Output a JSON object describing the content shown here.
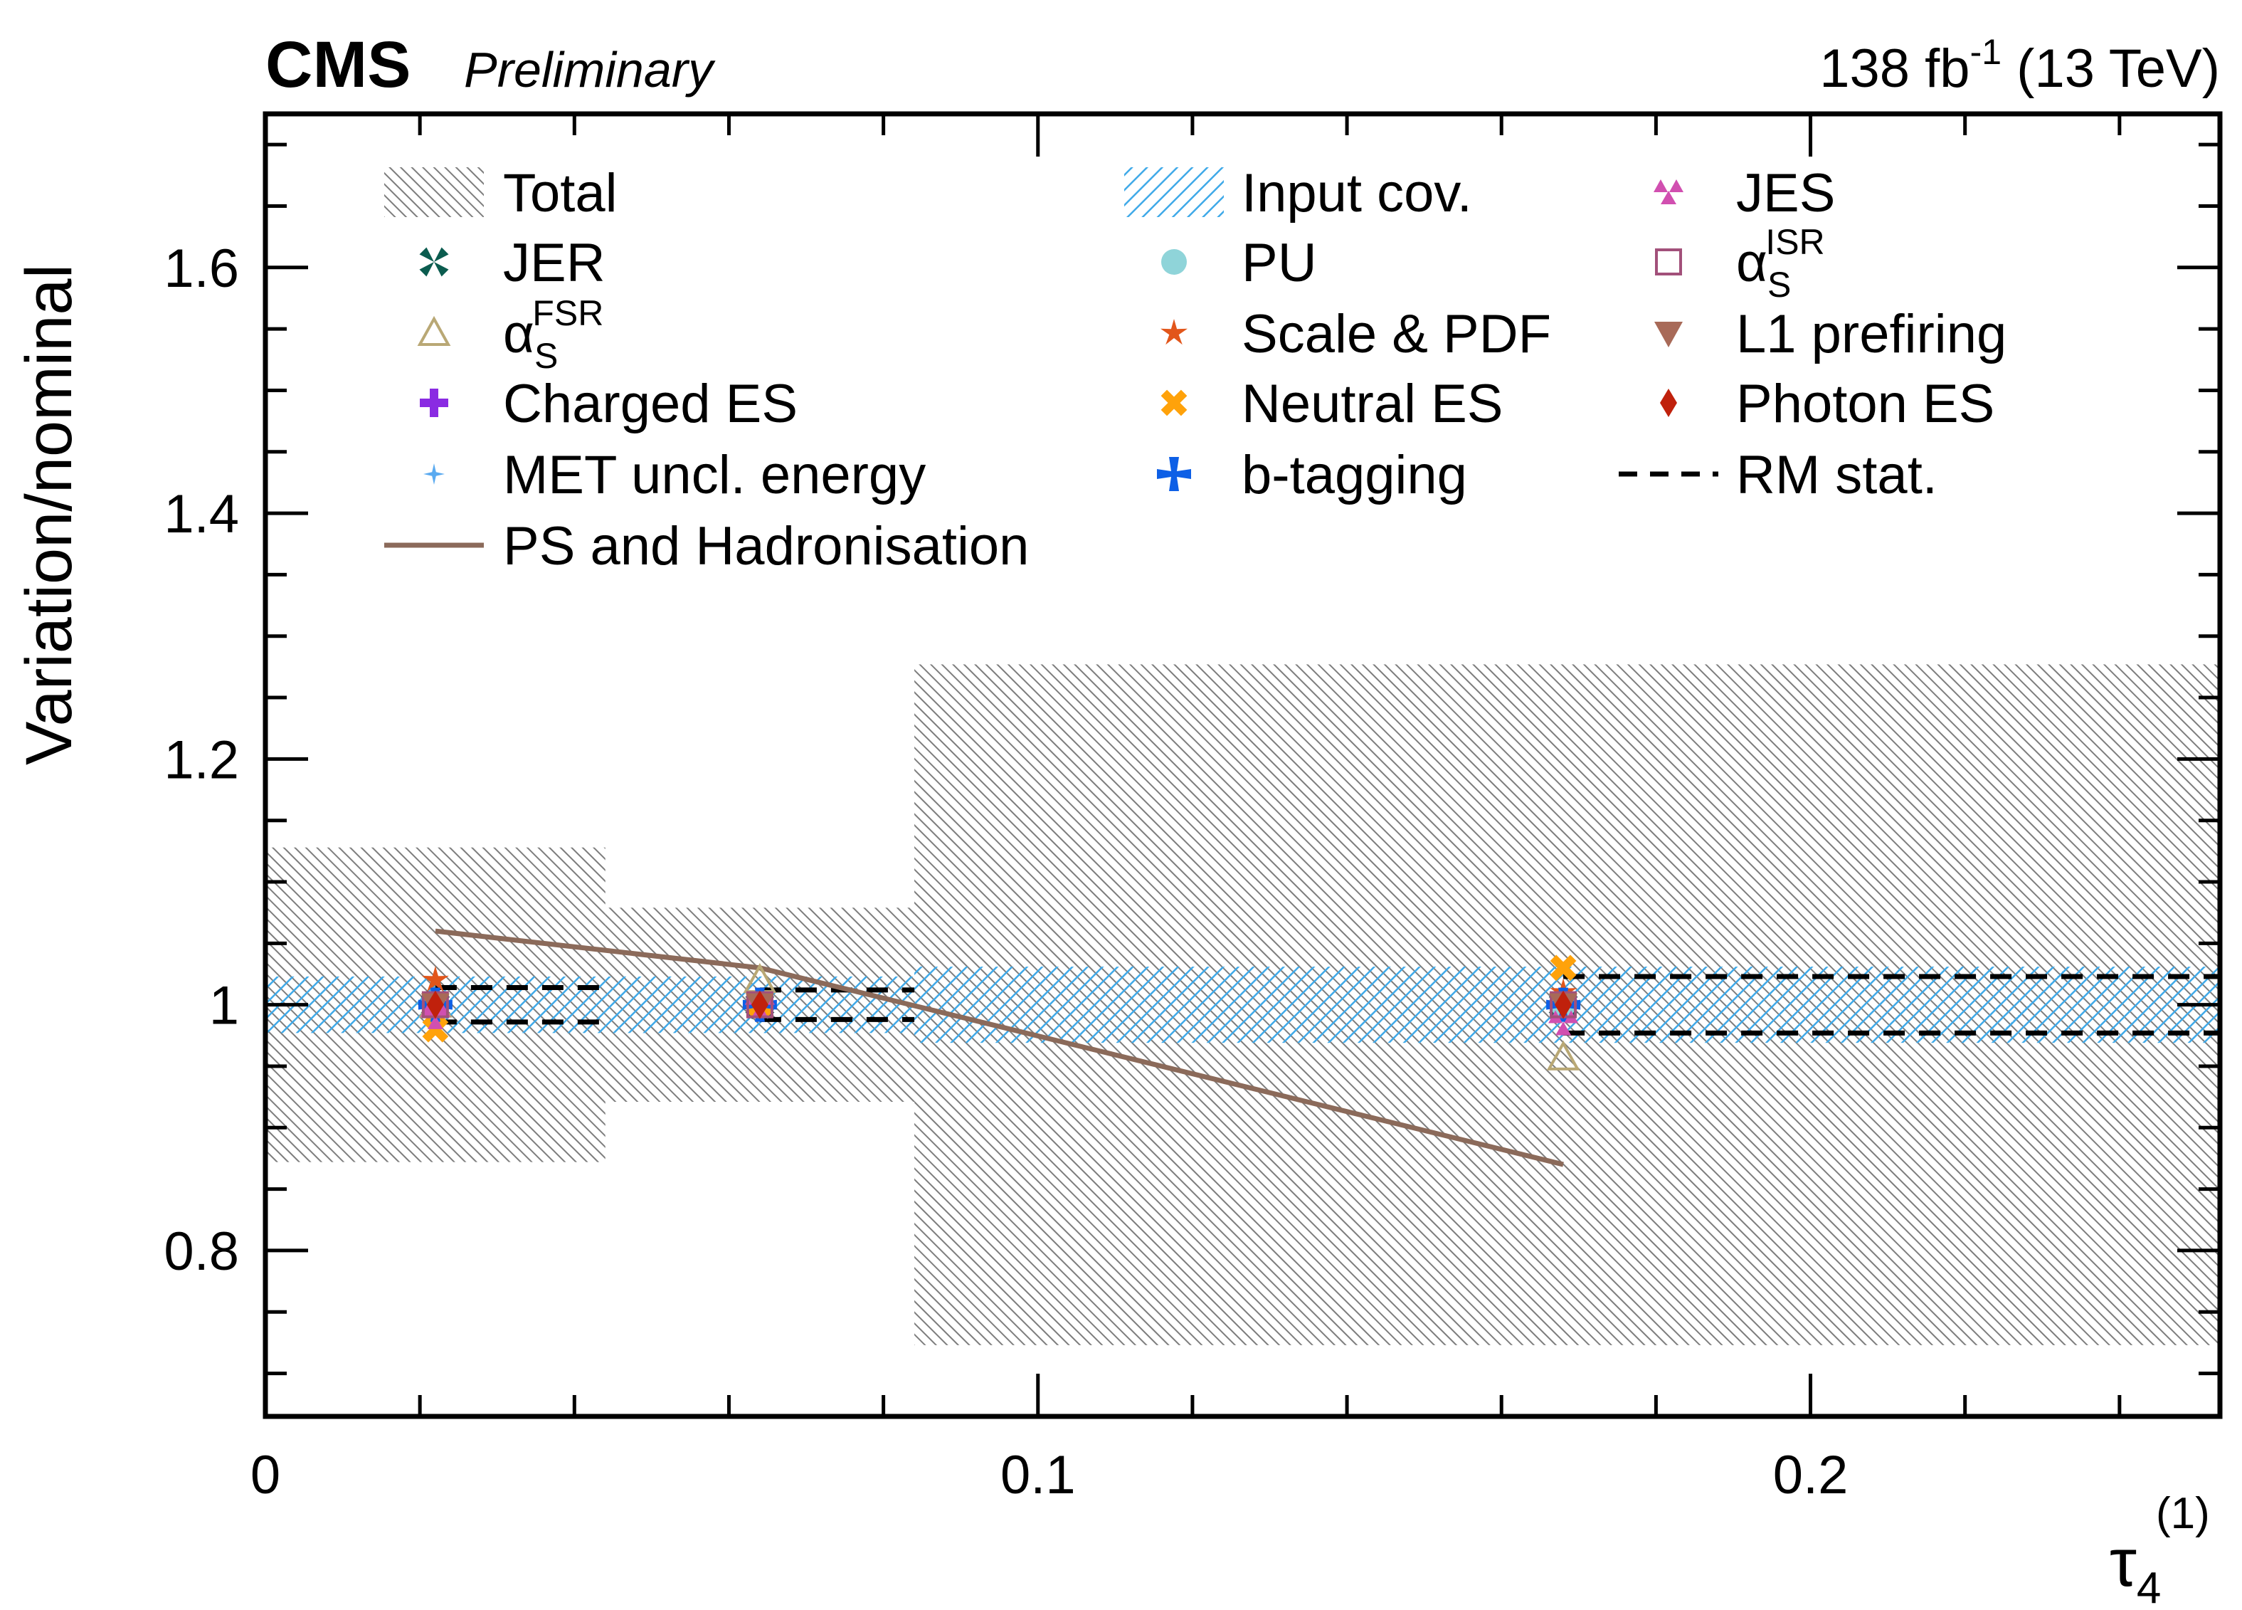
{
  "header": {
    "experiment": "CMS",
    "status": "Preliminary",
    "lumi_value": "138 fb",
    "lumi_sup": "-1",
    "energy": " (13 TeV)"
  },
  "chart_data": {
    "type": "scatter",
    "title": "",
    "xlabel": "τ",
    "xlabel_sub": "4",
    "xlabel_sup": "(1)",
    "ylabel": "Variation/nominal",
    "xlim": [
      0,
      0.253
    ],
    "ylim": [
      0.665,
      1.725
    ],
    "x_ticks": [
      0,
      0.1,
      0.2
    ],
    "x_tick_labels": [
      "0",
      "0.1",
      "0.2"
    ],
    "y_ticks": [
      0.8,
      1.0,
      1.2,
      1.4,
      1.6
    ],
    "y_tick_labels": [
      "0.8",
      "1",
      "1.2",
      "1.4",
      "1.6"
    ],
    "bins": [
      [
        0,
        0.044
      ],
      [
        0.044,
        0.084
      ],
      [
        0.084,
        0.253
      ]
    ],
    "bin_centers": [
      0.022,
      0.064,
      0.168
    ],
    "total_band": [
      [
        0.872,
        1.128
      ],
      [
        0.921,
        1.079
      ],
      [
        0.723,
        1.277
      ]
    ],
    "input_cov_band": [
      [
        0.977,
        1.023
      ],
      [
        0.977,
        1.023
      ],
      [
        0.969,
        1.031
      ]
    ],
    "rm_stat": [
      [
        0.986,
        1.014
      ],
      [
        0.988,
        1.012
      ],
      [
        0.977,
        1.023
      ]
    ],
    "ps_hadronisation": [
      1.06,
      1.03,
      0.87
    ],
    "legend": {
      "placement": "top",
      "entries": [
        {
          "label": "Total",
          "style": "total-band",
          "color": "#8c8c8c"
        },
        {
          "label": "JER",
          "style": "x-star",
          "color": "#0b5c4f"
        },
        {
          "label": "α",
          "sub": "S",
          "sup": "FSR",
          "style": "triangle-open",
          "color": "#b9a875"
        },
        {
          "label": "Charged ES",
          "style": "cross",
          "color": "#8a2be2"
        },
        {
          "label": "MET uncl. energy",
          "style": "small-star",
          "color": "#5aaaf0"
        },
        {
          "label": "PS and Hadronisation",
          "style": "line",
          "color": "#8b6a5a"
        },
        {
          "label": "Input cov.",
          "style": "input-band",
          "color": "#3fa9e8"
        },
        {
          "label": "PU",
          "style": "circle",
          "color": "#8fd4d9"
        },
        {
          "label": "Scale & PDF",
          "style": "star",
          "color": "#e2561b"
        },
        {
          "label": "Neutral ES",
          "style": "x",
          "color": "#ffa20a"
        },
        {
          "label": "b-tagging",
          "style": "big-cross",
          "color": "#0d5fe6"
        },
        {
          "label": "JES",
          "style": "double-triangle",
          "color": "#d14fb0"
        },
        {
          "label": "α",
          "sub": "S",
          "sup": "ISR",
          "style": "square-open",
          "color": "#a2507a"
        },
        {
          "label": "L1 prefiring",
          "style": "triangle-down",
          "color": "#a86a58"
        },
        {
          "label": "Photon ES",
          "style": "diamond",
          "color": "#c0210c"
        },
        {
          "label": "RM stat.",
          "style": "dashed",
          "color": "#000000"
        }
      ]
    },
    "series": [
      {
        "name": "JER",
        "color": "#0b5c4f",
        "values": [
          1.0,
          1.0,
          1.0
        ]
      },
      {
        "name": "αSFSR",
        "color": "#b9a875",
        "values": [
          1.0,
          1.02,
          0.957
        ]
      },
      {
        "name": "Charged ES",
        "color": "#8a2be2",
        "values": [
          1.0,
          1.0,
          1.0
        ]
      },
      {
        "name": "MET uncl. energy",
        "color": "#5aaaf0",
        "values": [
          1.0,
          1.0,
          1.0
        ]
      },
      {
        "name": "PU",
        "color": "#8fd4d9",
        "values": [
          1.0,
          1.0,
          1.0
        ]
      },
      {
        "name": "Scale & PDF",
        "color": "#e2561b",
        "values": [
          1.02,
          1.0,
          1.01
        ]
      },
      {
        "name": "Neutral ES",
        "color": "#ffa20a",
        "values": [
          0.98,
          1.0,
          1.03
        ]
      },
      {
        "name": "b-tagging",
        "color": "#0d5fe6",
        "values": [
          1.0,
          1.0,
          1.0
        ]
      },
      {
        "name": "JES",
        "color": "#d14fb0",
        "values": [
          0.99,
          1.0,
          0.985
        ]
      },
      {
        "name": "αSISR",
        "color": "#a2507a",
        "values": [
          1.0,
          1.0,
          1.0
        ]
      },
      {
        "name": "L1 prefiring",
        "color": "#a86a58",
        "values": [
          1.0,
          1.0,
          1.0
        ]
      },
      {
        "name": "Photon ES",
        "color": "#c0210c",
        "values": [
          1.0,
          1.0,
          1.0
        ]
      }
    ]
  }
}
